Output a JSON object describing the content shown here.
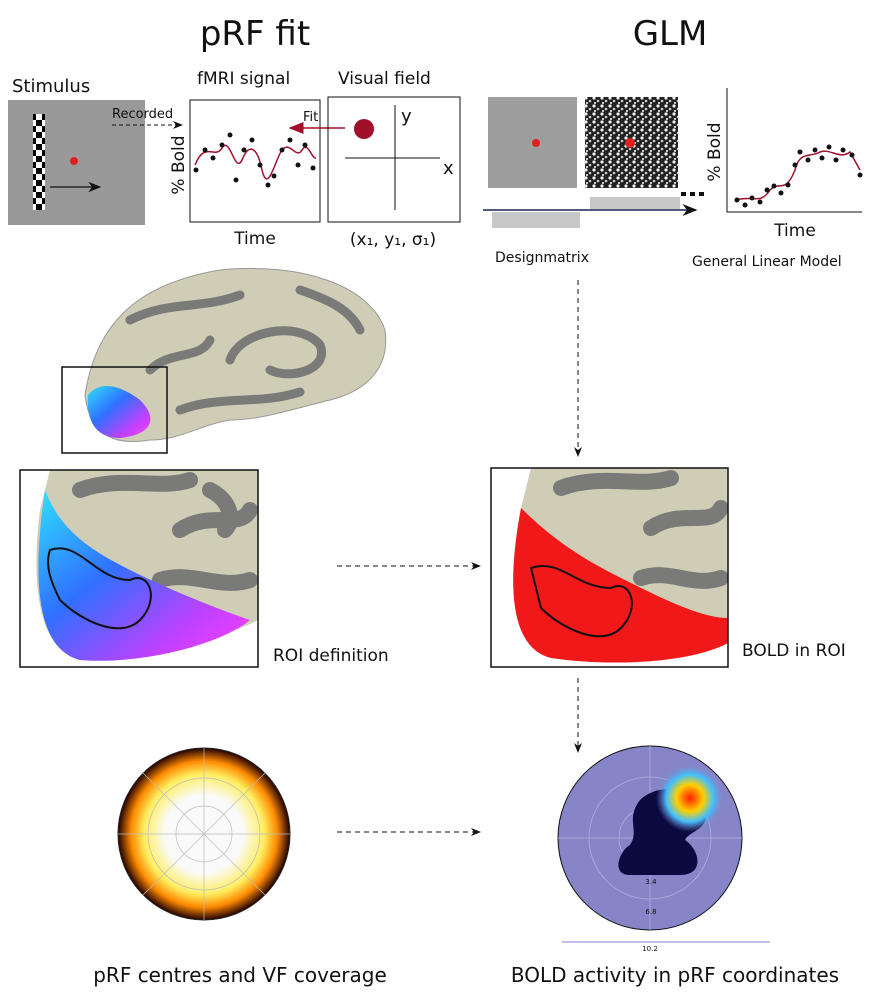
{
  "titles": {
    "prf": "pRF fit",
    "glm": "GLM"
  },
  "prf": {
    "stimulus": "Stimulus",
    "signal": "fMRI signal",
    "visual_field": "Visual field",
    "recorded": "Recorded",
    "fit": "Fit",
    "y_axis": "% Bold",
    "x_axis": "Time",
    "vf_y": "y",
    "vf_x": "x",
    "params": "(x₁, y₁, σ₁)"
  },
  "glm": {
    "design": "Designmatrix",
    "model": "General Linear Model",
    "y_axis": "% Bold",
    "x_axis": "Time"
  },
  "labels": {
    "roi": "ROI definition",
    "bold_roi": "BOLD in ROI",
    "coverage": "pRF centres and VF coverage",
    "bold_prf": "BOLD activity in pRF coordinates"
  },
  "polar": {
    "ticks": [
      "3.4",
      "6.8",
      "10.2"
    ]
  }
}
